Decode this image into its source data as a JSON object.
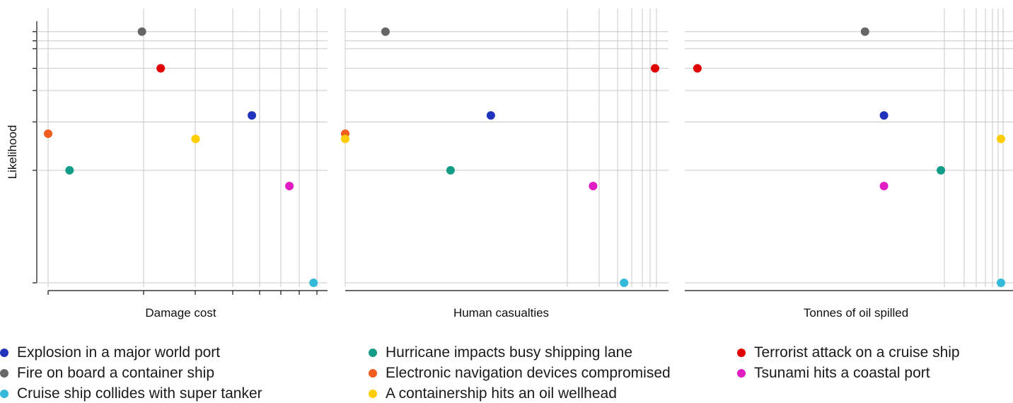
{
  "chart_data": {
    "type": "scatter",
    "ylabel": "Likelihood",
    "y_tick_labels_shown": false,
    "x_tick_labels_shown": false,
    "grid": true,
    "legend_placement": "bottom",
    "panels": [
      {
        "xlabel": "Damage cost",
        "x_scale": "log",
        "points": [
          {
            "series": "Explosion in a major world port",
            "x": 0.76,
            "y": 0.64
          },
          {
            "series": "Fire on board a container ship",
            "x": 0.35,
            "y": 0.96
          },
          {
            "series": "Cruise ship collides with super tanker",
            "x": 0.99,
            "y": 0.0
          },
          {
            "series": "Hurricane impacts busy shipping lane",
            "x": 0.08,
            "y": 0.43
          },
          {
            "series": "Electronic navigation devices compromised",
            "x": 0.0,
            "y": 0.57
          },
          {
            "series": "A containership hits an oil wellhead",
            "x": 0.55,
            "y": 0.55
          },
          {
            "series": "Terrorist attack on a cruise ship",
            "x": 0.42,
            "y": 0.82
          },
          {
            "series": "Tsunami hits a coastal port",
            "x": 0.9,
            "y": 0.37
          }
        ]
      },
      {
        "xlabel": "Human casualties",
        "x_scale": "log",
        "points": [
          {
            "series": "Explosion in a major world port",
            "x": 0.47,
            "y": 0.64
          },
          {
            "series": "Fire on board a container ship",
            "x": 0.13,
            "y": 0.96
          },
          {
            "series": "Cruise ship collides with super tanker",
            "x": 0.9,
            "y": 0.0
          },
          {
            "series": "Hurricane impacts busy shipping lane",
            "x": 0.34,
            "y": 0.43
          },
          {
            "series": "Electronic navigation devices compromised",
            "x": 0.0,
            "y": 0.57
          },
          {
            "series": "A containership hits an oil wellhead",
            "x": 0.0,
            "y": 0.55
          },
          {
            "series": "Terrorist attack on a cruise ship",
            "x": 1.0,
            "y": 0.82
          },
          {
            "series": "Tsunami hits a coastal port",
            "x": 0.8,
            "y": 0.37
          }
        ]
      },
      {
        "xlabel": "Tonnes of oil spilled",
        "x_scale": "log",
        "points": [
          {
            "series": "Explosion in a major world port",
            "x": 0.63,
            "y": 0.64
          },
          {
            "series": "Fire on board a container ship",
            "x": 0.57,
            "y": 0.96
          },
          {
            "series": "Cruise ship collides with super tanker",
            "x": 1.0,
            "y": 0.0
          },
          {
            "series": "Hurricane impacts busy shipping lane",
            "x": 0.81,
            "y": 0.43
          },
          {
            "series": "A containership hits an oil wellhead",
            "x": 1.0,
            "y": 0.55
          },
          {
            "series": "Terrorist attack on a cruise ship",
            "x": 0.04,
            "y": 0.82
          },
          {
            "series": "Tsunami hits a coastal port",
            "x": 0.63,
            "y": 0.37
          }
        ]
      }
    ],
    "series": [
      {
        "name": "Explosion in a major world port",
        "color": "#2233bb"
      },
      {
        "name": "Fire on board a container ship",
        "color": "#666666"
      },
      {
        "name": "Cruise ship collides with super tanker",
        "color": "#35b9d9"
      },
      {
        "name": "Hurricane impacts busy shipping lane",
        "color": "#139c87"
      },
      {
        "name": "Electronic navigation devices compromised",
        "color": "#f15d1c"
      },
      {
        "name": "A containership hits an oil wellhead",
        "color": "#ffcc00"
      },
      {
        "name": "Terrorist attack on a cruise ship",
        "color": "#e00000"
      },
      {
        "name": "Tsunami hits a coastal port",
        "color": "#e21cc3"
      }
    ]
  }
}
